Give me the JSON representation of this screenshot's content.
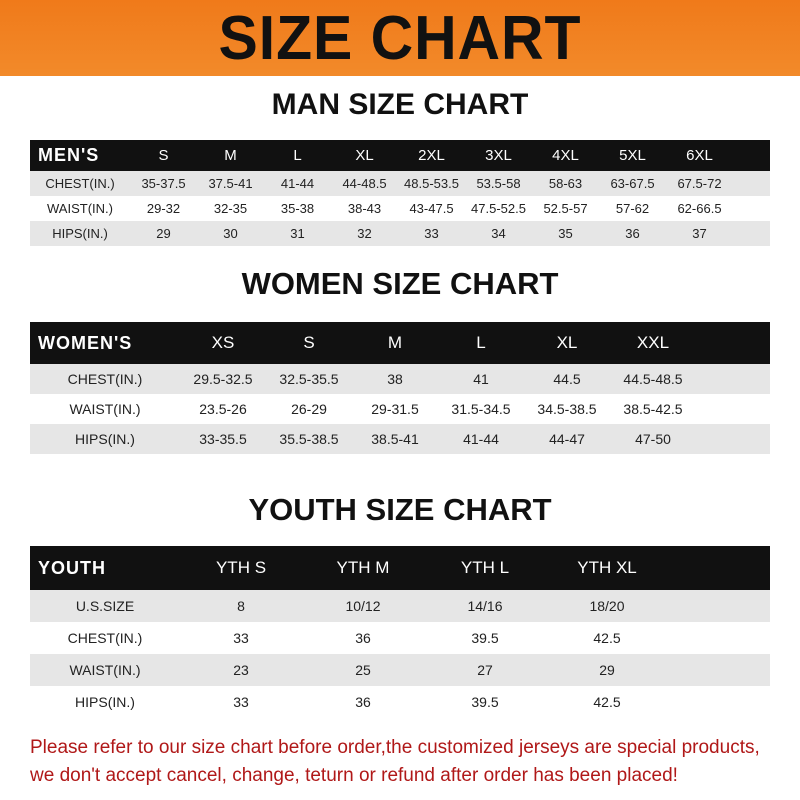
{
  "banner": "SIZE CHART",
  "men": {
    "title": "MAN SIZE CHART",
    "header": [
      "MEN'S",
      "S",
      "M",
      "L",
      "XL",
      "2XL",
      "3XL",
      "4XL",
      "5XL",
      "6XL"
    ],
    "rows": [
      [
        "CHEST(IN.)",
        "35-37.5",
        "37.5-41",
        "41-44",
        "44-48.5",
        "48.5-53.5",
        "53.5-58",
        "58-63",
        "63-67.5",
        "67.5-72"
      ],
      [
        "WAIST(IN.)",
        "29-32",
        "32-35",
        "35-38",
        "38-43",
        "43-47.5",
        "47.5-52.5",
        "52.5-57",
        "57-62",
        "62-66.5"
      ],
      [
        "HIPS(IN.)",
        "29",
        "30",
        "31",
        "32",
        "33",
        "34",
        "35",
        "36",
        "37"
      ]
    ]
  },
  "women": {
    "title": "WOMEN SIZE CHART",
    "header": [
      "WOMEN'S",
      "XS",
      "S",
      "M",
      "L",
      "XL",
      "XXL"
    ],
    "rows": [
      [
        "CHEST(IN.)",
        "29.5-32.5",
        "32.5-35.5",
        "38",
        "41",
        "44.5",
        "44.5-48.5"
      ],
      [
        "WAIST(IN.)",
        "23.5-26",
        "26-29",
        "29-31.5",
        "31.5-34.5",
        "34.5-38.5",
        "38.5-42.5"
      ],
      [
        "HIPS(IN.)",
        "33-35.5",
        "35.5-38.5",
        "38.5-41",
        "41-44",
        "44-47",
        "47-50"
      ]
    ]
  },
  "youth": {
    "title": "YOUTH SIZE CHART",
    "header": [
      "YOUTH",
      "YTH S",
      "YTH M",
      "YTH L",
      "YTH XL"
    ],
    "rows": [
      [
        "U.S.SIZE",
        "8",
        "10/12",
        "14/16",
        "18/20"
      ],
      [
        "CHEST(IN.)",
        "33",
        "36",
        "39.5",
        "42.5"
      ],
      [
        "WAIST(IN.)",
        "23",
        "25",
        "27",
        "29"
      ],
      [
        "HIPS(IN.)",
        "33",
        "36",
        "39.5",
        "42.5"
      ]
    ]
  },
  "note": [
    "Please refer to our size chart before order,the customized jerseys are special products,",
    "we don't accept cancel, change, teturn or refund after order has been placed!"
  ],
  "colors": {
    "banner": "#f07a1a",
    "header": "#111111",
    "note": "#b01818"
  }
}
